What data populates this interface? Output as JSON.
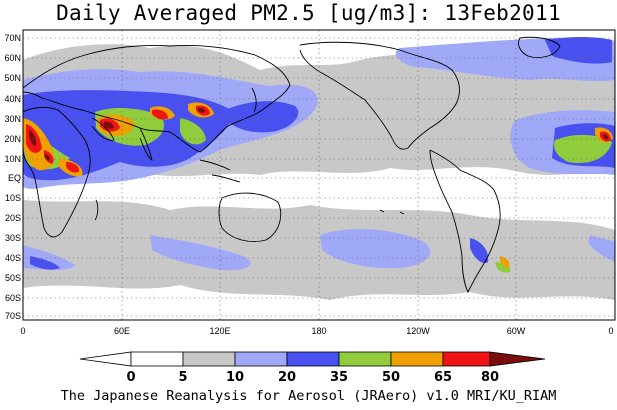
{
  "title": "Daily Averaged PM2.5 [ug/m3]: 13Feb2011",
  "footer": "The Japanese Reanalysis for Aerosol (JRAero) v1.0 MRI/KU_RIAM",
  "lat_labels": [
    "70N",
    "60N",
    "50N",
    "40N",
    "30N",
    "20N",
    "10N",
    "EQ",
    "10S",
    "20S",
    "30S",
    "40S",
    "50S",
    "60S",
    "70S"
  ],
  "lon_labels": [
    "0",
    "60E",
    "120E",
    "180",
    "120W",
    "60W",
    "0"
  ],
  "colorbar": {
    "ticks": [
      "0",
      "5",
      "10",
      "20",
      "35",
      "50",
      "65",
      "80"
    ],
    "colors": [
      "#ffffff",
      "#ffffff",
      "#c8c8c8",
      "#a0a8f8",
      "#4850f0",
      "#90cc3c",
      "#f0a000",
      "#f01414",
      "#7a0c0c"
    ]
  },
  "map_colors": {
    "land": "#ffffff",
    "gray": "#c8c8c8",
    "light_blue": "#a0a8f8",
    "blue": "#4850f0",
    "green": "#90cc3c",
    "orange": "#f0a000",
    "red": "#f01414",
    "dark_red": "#7a0c0c"
  }
}
